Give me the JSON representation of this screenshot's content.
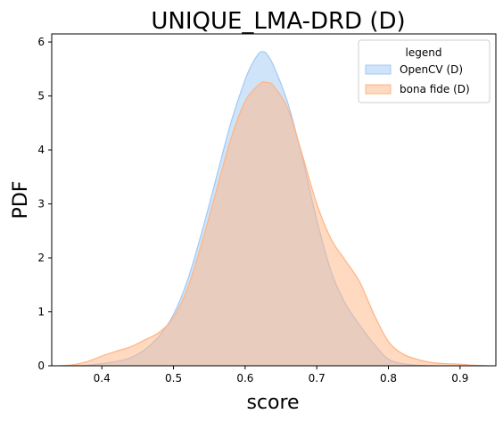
{
  "chart_data": {
    "type": "area",
    "title": "UNIQUE_LMA-DRD (D)",
    "xlabel": "score",
    "ylabel": "PDF",
    "xlim": [
      0.33,
      0.95
    ],
    "ylim": [
      0,
      6.15
    ],
    "xticks": [
      "0.4",
      "0.5",
      "0.6",
      "0.7",
      "0.8",
      "0.9"
    ],
    "yticks": [
      "0",
      "1",
      "2",
      "3",
      "4",
      "5",
      "6"
    ],
    "grid": false,
    "legend": {
      "title": "legend",
      "placement": "top-right"
    },
    "series": [
      {
        "name": "OpenCV (D)",
        "color": "#a1c9f4",
        "x": [
          0.36,
          0.38,
          0.4,
          0.42,
          0.44,
          0.46,
          0.48,
          0.5,
          0.52,
          0.54,
          0.56,
          0.58,
          0.6,
          0.61,
          0.62,
          0.625,
          0.63,
          0.64,
          0.66,
          0.68,
          0.7,
          0.72,
          0.74,
          0.76,
          0.78,
          0.8,
          0.82,
          0.84,
          0.86
        ],
        "y": [
          0.0,
          0.01,
          0.04,
          0.08,
          0.15,
          0.3,
          0.55,
          0.95,
          1.6,
          2.5,
          3.5,
          4.5,
          5.3,
          5.6,
          5.8,
          5.82,
          5.78,
          5.55,
          4.85,
          3.85,
          2.7,
          1.75,
          1.15,
          0.75,
          0.4,
          0.12,
          0.04,
          0.01,
          0.0
        ]
      },
      {
        "name": "bona fide (D)",
        "color": "#ffb482",
        "x": [
          0.34,
          0.36,
          0.38,
          0.4,
          0.42,
          0.44,
          0.46,
          0.48,
          0.5,
          0.52,
          0.54,
          0.56,
          0.58,
          0.6,
          0.62,
          0.63,
          0.64,
          0.66,
          0.68,
          0.7,
          0.72,
          0.74,
          0.76,
          0.78,
          0.8,
          0.82,
          0.84,
          0.86,
          0.88,
          0.9,
          0.92,
          0.94
        ],
        "y": [
          0.0,
          0.02,
          0.08,
          0.18,
          0.27,
          0.35,
          0.48,
          0.62,
          0.9,
          1.45,
          2.3,
          3.25,
          4.2,
          4.9,
          5.22,
          5.25,
          5.18,
          4.75,
          3.9,
          3.0,
          2.35,
          1.95,
          1.55,
          0.95,
          0.45,
          0.22,
          0.12,
          0.06,
          0.04,
          0.03,
          0.01,
          0.0
        ]
      }
    ]
  }
}
